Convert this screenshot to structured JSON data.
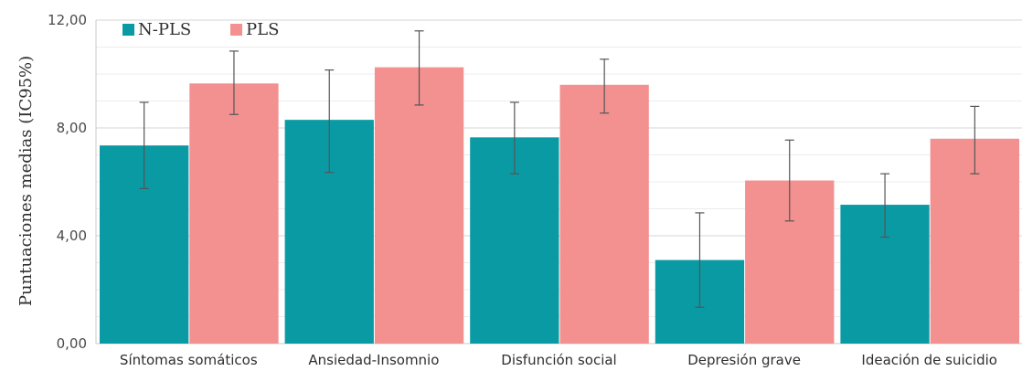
{
  "chart_data": {
    "type": "bar",
    "ylabel": "Puntuaciones medias (IC95%)",
    "ylim": [
      0,
      12
    ],
    "yticks": [
      "0,00",
      "4,00",
      "8,00",
      "12,00"
    ],
    "ytick_values": [
      0,
      4,
      8,
      12
    ],
    "grid": true,
    "legend_position": "top-left",
    "categories": [
      "Síntomas somáticos",
      "Ansiedad-Insomnio",
      "Disfunción social",
      "Depresión grave",
      "Ideación de suicidio"
    ],
    "series": [
      {
        "name": "N-PLS",
        "color": "#0a9aa3",
        "values": [
          7.35,
          8.3,
          7.65,
          3.1,
          5.15
        ],
        "ci_low": [
          5.75,
          6.35,
          6.3,
          1.35,
          3.95
        ],
        "ci_high": [
          8.95,
          10.15,
          8.95,
          4.85,
          6.3
        ]
      },
      {
        "name": "PLS",
        "color": "#f39090",
        "values": [
          9.65,
          10.25,
          9.6,
          6.05,
          7.6
        ],
        "ci_low": [
          8.5,
          8.85,
          8.55,
          4.55,
          6.3
        ],
        "ci_high": [
          10.85,
          11.6,
          10.55,
          7.55,
          8.8
        ]
      }
    ]
  }
}
